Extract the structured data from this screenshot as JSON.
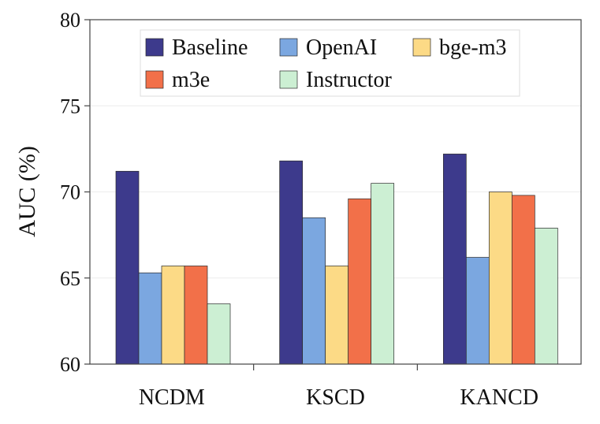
{
  "chart_data": {
    "type": "bar",
    "title": "",
    "xlabel": "",
    "ylabel": "AUC (%)",
    "ylim": [
      60,
      80
    ],
    "yticks": [
      60,
      65,
      70,
      75,
      80
    ],
    "grid": true,
    "legend_position": "top",
    "categories": [
      "NCDM",
      "KSCD",
      "KANCD"
    ],
    "series": [
      {
        "name": "Baseline",
        "color": "#3d3a8c",
        "values": [
          71.2,
          71.8,
          72.2
        ]
      },
      {
        "name": "OpenAI",
        "color": "#7ba7e0",
        "values": [
          65.3,
          68.5,
          66.2
        ]
      },
      {
        "name": "bge-m3",
        "color": "#fcda86",
        "values": [
          65.7,
          65.7,
          70.0
        ]
      },
      {
        "name": "m3e",
        "color": "#f27049",
        "values": [
          65.7,
          69.6,
          69.8
        ]
      },
      {
        "name": "Instructor",
        "color": "#ccefd3",
        "values": [
          63.5,
          70.5,
          67.9
        ]
      }
    ]
  }
}
